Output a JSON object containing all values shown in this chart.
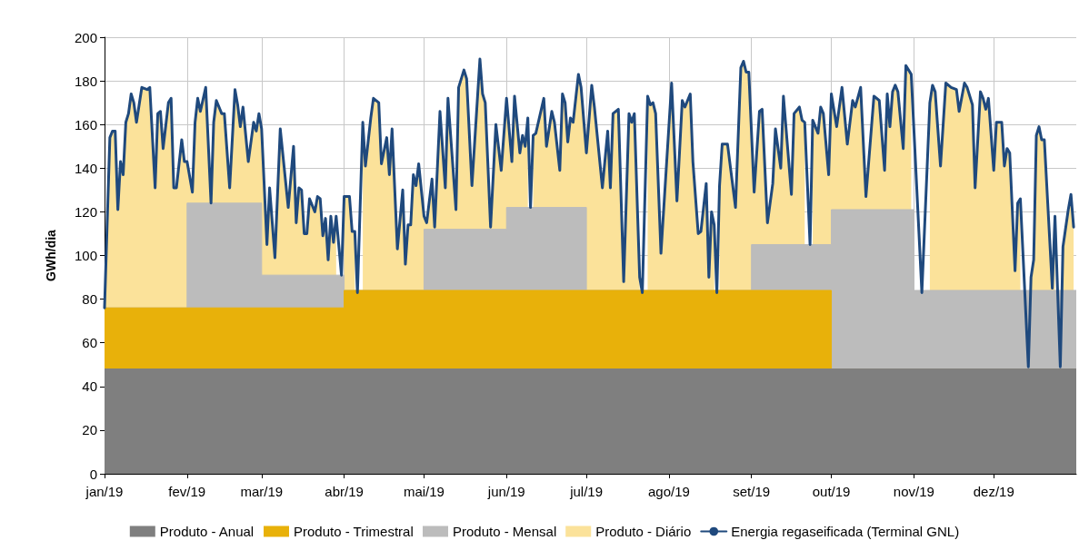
{
  "chart_data": {
    "type": "area",
    "ylabel": "GWh/dia",
    "ylim": [
      0,
      200
    ],
    "yticks": [
      0,
      20,
      40,
      60,
      80,
      100,
      120,
      140,
      160,
      180,
      200
    ],
    "xlim": [
      "2019-01-01",
      "2020-01-01"
    ],
    "xticks": [
      {
        "value": "2019-01-01",
        "label": "jan/19"
      },
      {
        "value": "2019-02-01",
        "label": "fev/19"
      },
      {
        "value": "2019-03-01",
        "label": "mar/19"
      },
      {
        "value": "2019-04-01",
        "label": "abr/19"
      },
      {
        "value": "2019-05-01",
        "label": "mai/19"
      },
      {
        "value": "2019-06-01",
        "label": "jun/19"
      },
      {
        "value": "2019-07-01",
        "label": "jul/19"
      },
      {
        "value": "2019-08-01",
        "label": "ago/19"
      },
      {
        "value": "2019-09-01",
        "label": "set/19"
      },
      {
        "value": "2019-10-01",
        "label": "out/19"
      },
      {
        "value": "2019-11-01",
        "label": "nov/19"
      },
      {
        "value": "2019-12-01",
        "label": "dez/19"
      }
    ],
    "grid": true,
    "legend": "bottom",
    "marker": "none",
    "line_style": "solid",
    "x": [
      "2019-01-01",
      "2019-01-03",
      "2019-01-04",
      "2019-01-05",
      "2019-01-06",
      "2019-01-07",
      "2019-01-08",
      "2019-01-09",
      "2019-01-10",
      "2019-01-11",
      "2019-01-12",
      "2019-01-13",
      "2019-01-15",
      "2019-01-17",
      "2019-01-18",
      "2019-01-20",
      "2019-01-21",
      "2019-01-22",
      "2019-01-23",
      "2019-01-25",
      "2019-01-26",
      "2019-01-27",
      "2019-01-28",
      "2019-01-30",
      "2019-01-31",
      "2019-02-01",
      "2019-02-03",
      "2019-02-04",
      "2019-02-05",
      "2019-02-06",
      "2019-02-08",
      "2019-02-10",
      "2019-02-11",
      "2019-02-12",
      "2019-02-14",
      "2019-02-15",
      "2019-02-17",
      "2019-02-19",
      "2019-02-20",
      "2019-02-21",
      "2019-02-22",
      "2019-02-24",
      "2019-02-26",
      "2019-02-27",
      "2019-02-28",
      "2019-03-01",
      "2019-03-03",
      "2019-03-04",
      "2019-03-06",
      "2019-03-08",
      "2019-03-11",
      "2019-03-13",
      "2019-03-14",
      "2019-03-15",
      "2019-03-16",
      "2019-03-17",
      "2019-03-18",
      "2019-03-19",
      "2019-03-21",
      "2019-03-22",
      "2019-03-23",
      "2019-03-24",
      "2019-03-25",
      "2019-03-26",
      "2019-03-27",
      "2019-03-28",
      "2019-03-29",
      "2019-03-31",
      "2019-04-01",
      "2019-04-03",
      "2019-04-04",
      "2019-04-05",
      "2019-04-06",
      "2019-04-08",
      "2019-04-09",
      "2019-04-11",
      "2019-04-12",
      "2019-04-14",
      "2019-04-15",
      "2019-04-17",
      "2019-04-18",
      "2019-04-19",
      "2019-04-21",
      "2019-04-23",
      "2019-04-24",
      "2019-04-25",
      "2019-04-26",
      "2019-04-27",
      "2019-04-28",
      "2019-04-29",
      "2019-05-01",
      "2019-05-02",
      "2019-05-04",
      "2019-05-05",
      "2019-05-07",
      "2019-05-09",
      "2019-05-10",
      "2019-05-13",
      "2019-05-14",
      "2019-05-16",
      "2019-05-17",
      "2019-05-19",
      "2019-05-22",
      "2019-05-23",
      "2019-05-24",
      "2019-05-26",
      "2019-05-28",
      "2019-05-30",
      "2019-06-01",
      "2019-06-03",
      "2019-06-04",
      "2019-06-06",
      "2019-06-07",
      "2019-06-08",
      "2019-06-09",
      "2019-06-10",
      "2019-06-11",
      "2019-06-12",
      "2019-06-15",
      "2019-06-16",
      "2019-06-18",
      "2019-06-19",
      "2019-06-21",
      "2019-06-22",
      "2019-06-23",
      "2019-06-24",
      "2019-06-25",
      "2019-06-26",
      "2019-06-28",
      "2019-06-29",
      "2019-07-01",
      "2019-07-03",
      "2019-07-04",
      "2019-07-07",
      "2019-07-09",
      "2019-07-10",
      "2019-07-11",
      "2019-07-13",
      "2019-07-15",
      "2019-07-17",
      "2019-07-18",
      "2019-07-19",
      "2019-07-21",
      "2019-07-22",
      "2019-07-24",
      "2019-07-25",
      "2019-07-26",
      "2019-07-27",
      "2019-07-29",
      "2019-08-02",
      "2019-08-04",
      "2019-08-06",
      "2019-08-07",
      "2019-08-09",
      "2019-08-10",
      "2019-08-12",
      "2019-08-13",
      "2019-08-15",
      "2019-08-16",
      "2019-08-17",
      "2019-08-18",
      "2019-08-19",
      "2019-08-20",
      "2019-08-21",
      "2019-08-23",
      "2019-08-26",
      "2019-08-28",
      "2019-08-29",
      "2019-08-30",
      "2019-08-31",
      "2019-09-02",
      "2019-09-04",
      "2019-09-05",
      "2019-09-07",
      "2019-09-09",
      "2019-09-10",
      "2019-09-12",
      "2019-09-13",
      "2019-09-16",
      "2019-09-17",
      "2019-09-19",
      "2019-09-20",
      "2019-09-21",
      "2019-09-23",
      "2019-09-24",
      "2019-09-26",
      "2019-09-27",
      "2019-09-28",
      "2019-09-30",
      "2019-10-01",
      "2019-10-03",
      "2019-10-05",
      "2019-10-07",
      "2019-10-09",
      "2019-10-10",
      "2019-10-12",
      "2019-10-14",
      "2019-10-17",
      "2019-10-19",
      "2019-10-21",
      "2019-10-22",
      "2019-10-23",
      "2019-10-24",
      "2019-10-25",
      "2019-10-26",
      "2019-10-28",
      "2019-10-29",
      "2019-10-31",
      "2019-11-04",
      "2019-11-07",
      "2019-11-08",
      "2019-11-09",
      "2019-11-11",
      "2019-11-13",
      "2019-11-15",
      "2019-11-17",
      "2019-11-18",
      "2019-11-20",
      "2019-11-21",
      "2019-11-23",
      "2019-11-24",
      "2019-11-26",
      "2019-11-27",
      "2019-11-28",
      "2019-11-29",
      "2019-12-01",
      "2019-12-02",
      "2019-12-04",
      "2019-12-05",
      "2019-12-06",
      "2019-12-07",
      "2019-12-09",
      "2019-12-10",
      "2019-12-11",
      "2019-12-14",
      "2019-12-15",
      "2019-12-16",
      "2019-12-17",
      "2019-12-18",
      "2019-12-19",
      "2019-12-20",
      "2019-12-23",
      "2019-12-24",
      "2019-12-26",
      "2019-12-27",
      "2019-12-29",
      "2019-12-30",
      "2019-12-31"
    ],
    "series": [
      {
        "name": "Produto - Anual",
        "color": "#7f7f7f",
        "x": [
          "2019-01-01",
          "2020-01-01"
        ],
        "values": [
          48,
          48
        ]
      },
      {
        "name": "Produto - Trimestral",
        "color": "#e8b10a",
        "x": [
          "2019-01-01",
          "2019-04-01",
          "2019-04-01",
          "2019-10-01",
          "2019-10-01",
          "2020-01-01"
        ],
        "values": [
          76,
          76,
          84,
          84,
          48,
          48
        ]
      },
      {
        "name": "Produto - Mensal",
        "color": "#bcbcbc",
        "x": [
          "2019-01-01",
          "2019-02-01",
          "2019-02-01",
          "2019-03-01",
          "2019-03-01",
          "2019-04-01",
          "2019-04-01",
          "2019-05-01",
          "2019-05-01",
          "2019-06-01",
          "2019-06-01",
          "2019-07-01",
          "2019-07-01",
          "2019-09-01",
          "2019-09-01",
          "2019-10-01",
          "2019-10-01",
          "2019-11-01",
          "2019-11-01",
          "2020-01-01"
        ],
        "values": [
          76,
          76,
          124,
          124,
          91,
          91,
          84,
          84,
          112,
          112,
          122,
          122,
          84,
          84,
          105,
          105,
          121,
          121,
          84,
          84
        ]
      },
      {
        "name": "Produto - Diário",
        "color": "#fbe29a",
        "values": [
          76,
          154,
          157,
          157,
          121,
          143,
          137,
          161,
          165,
          174,
          170,
          161,
          177,
          176,
          177,
          131,
          165,
          166,
          149,
          170,
          172,
          131,
          131,
          153,
          143,
          143,
          129,
          161,
          172,
          166,
          177,
          124,
          161,
          171,
          165,
          165,
          131,
          176,
          169,
          159,
          168,
          143,
          161,
          157,
          165,
          158,
          105,
          131,
          99,
          158,
          122,
          150,
          115,
          131,
          130,
          110,
          110,
          126,
          120,
          127,
          126,
          109,
          117,
          98,
          118,
          106,
          118,
          null,
          127,
          127,
          111,
          111,
          null,
          161,
          141,
          163,
          172,
          170,
          142,
          154,
          137,
          158,
          103,
          130,
          96,
          114,
          114,
          137,
          132,
          142,
          118,
          115,
          135,
          113,
          166,
          131,
          172,
          121,
          177,
          185,
          181,
          132,
          190,
          174,
          170,
          113,
          160,
          139,
          172,
          143,
          173,
          147,
          155,
          150,
          163,
          null,
          155,
          156,
          172,
          150,
          166,
          161,
          139,
          174,
          170,
          152,
          163,
          161,
          183,
          177,
          147,
          178,
          168,
          131,
          157,
          131,
          165,
          167,
          88,
          165,
          161,
          165,
          90,
          null,
          173,
          169,
          170,
          165,
          101,
          179,
          125,
          171,
          168,
          174,
          143,
          110,
          111,
          133,
          90,
          120,
          114,
          null,
          132,
          151,
          151,
          122,
          186,
          189,
          184,
          184,
          129,
          166,
          167,
          115,
          133,
          158,
          140,
          173,
          128,
          165,
          168,
          162,
          161,
          null,
          162,
          156,
          168,
          165,
          137,
          174,
          159,
          177,
          151,
          171,
          168,
          177,
          127,
          173,
          171,
          139,
          174,
          159,
          175,
          178,
          175,
          149,
          187,
          183,
          null,
          170,
          178,
          175,
          141,
          179,
          177,
          176,
          166,
          179,
          177,
          169,
          131,
          175,
          172,
          167,
          172,
          139,
          161,
          161,
          141,
          149,
          147,
          93,
          124,
          126,
          null,
          90,
          98,
          155,
          159,
          153,
          153,
          85,
          118,
          null,
          104,
          121,
          128,
          113
        ]
      },
      {
        "name": "Energia regaseificada (Terminal GNL)",
        "type": "line",
        "color": "#1f497d",
        "values": [
          76,
          154,
          157,
          157,
          121,
          143,
          137,
          161,
          165,
          174,
          170,
          161,
          177,
          176,
          177,
          131,
          165,
          166,
          149,
          170,
          172,
          131,
          131,
          153,
          143,
          143,
          129,
          161,
          172,
          166,
          177,
          124,
          161,
          171,
          165,
          165,
          131,
          176,
          169,
          159,
          168,
          143,
          161,
          157,
          165,
          158,
          105,
          131,
          99,
          158,
          122,
          150,
          115,
          131,
          130,
          110,
          110,
          126,
          120,
          127,
          126,
          109,
          117,
          98,
          118,
          106,
          118,
          91,
          127,
          127,
          111,
          111,
          83,
          161,
          141,
          163,
          172,
          170,
          142,
          154,
          137,
          158,
          103,
          130,
          96,
          114,
          114,
          137,
          132,
          142,
          118,
          115,
          135,
          113,
          166,
          131,
          172,
          121,
          177,
          185,
          181,
          132,
          190,
          174,
          170,
          113,
          160,
          139,
          172,
          143,
          173,
          147,
          155,
          150,
          163,
          122,
          155,
          156,
          172,
          150,
          166,
          161,
          139,
          174,
          170,
          152,
          163,
          161,
          183,
          177,
          147,
          178,
          168,
          131,
          157,
          131,
          165,
          167,
          88,
          165,
          161,
          165,
          90,
          83,
          173,
          169,
          170,
          165,
          101,
          179,
          125,
          171,
          168,
          174,
          143,
          110,
          111,
          133,
          90,
          120,
          114,
          83,
          132,
          151,
          151,
          122,
          186,
          189,
          184,
          184,
          129,
          166,
          167,
          115,
          133,
          158,
          140,
          173,
          128,
          165,
          168,
          162,
          161,
          105,
          162,
          156,
          168,
          165,
          137,
          174,
          159,
          177,
          151,
          171,
          168,
          177,
          127,
          173,
          171,
          139,
          174,
          159,
          175,
          178,
          175,
          149,
          187,
          183,
          83,
          170,
          178,
          175,
          141,
          179,
          177,
          176,
          166,
          179,
          177,
          169,
          131,
          175,
          172,
          167,
          172,
          139,
          161,
          161,
          141,
          149,
          147,
          93,
          124,
          126,
          49,
          90,
          98,
          155,
          159,
          153,
          153,
          85,
          118,
          49,
          104,
          121,
          128,
          113
        ]
      }
    ]
  }
}
